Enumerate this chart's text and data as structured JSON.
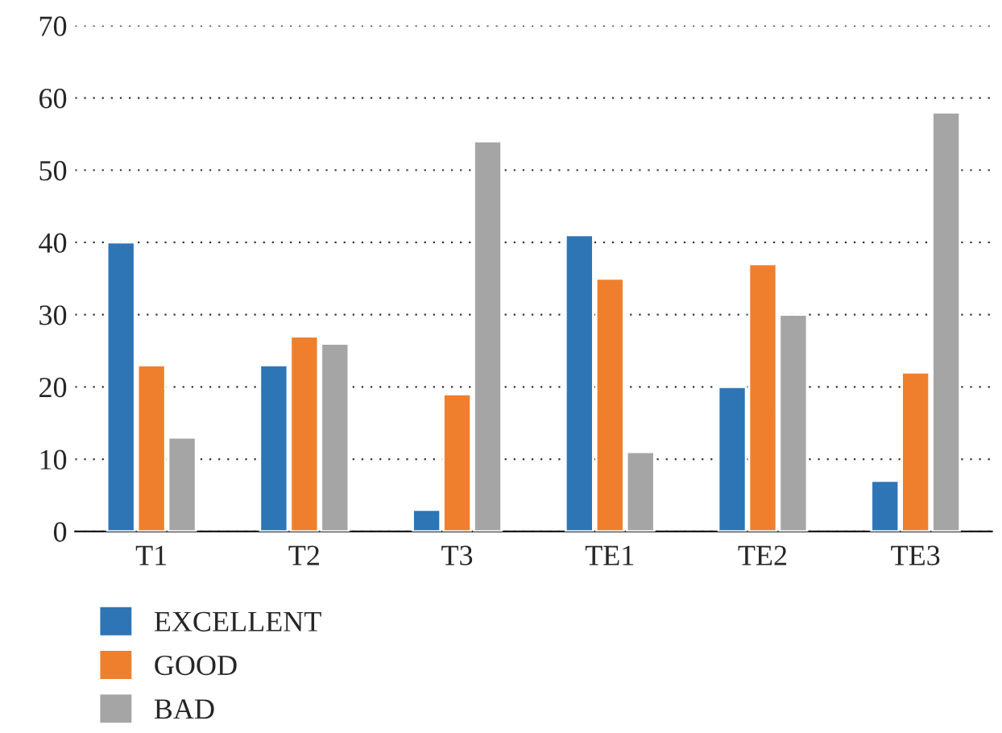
{
  "chart_data": {
    "type": "bar",
    "categories": [
      "T1",
      "T2",
      "T3",
      "TE1",
      "TE2",
      "TE3"
    ],
    "series": [
      {
        "name": "EXCELLENT",
        "color": "#2e75b6",
        "values": [
          40,
          23,
          3,
          41,
          20,
          7
        ]
      },
      {
        "name": "GOOD",
        "color": "#f07f2d",
        "values": [
          23,
          27,
          19,
          35,
          37,
          22
        ]
      },
      {
        "name": "BAD",
        "color": "#a5a5a5",
        "values": [
          13,
          26,
          54,
          11,
          30,
          58
        ]
      }
    ],
    "ylim": [
      0,
      70
    ],
    "yticks": [
      0,
      10,
      20,
      30,
      40,
      50,
      60,
      70
    ],
    "grid": "y",
    "legend": "bottom left"
  }
}
